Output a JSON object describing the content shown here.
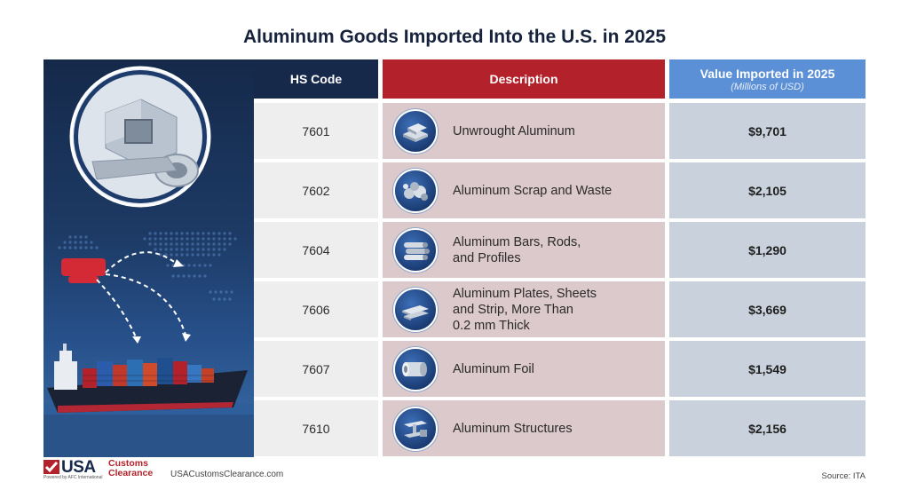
{
  "title": "Aluminum Goods Imported Into the U.S. in 2025",
  "headers": {
    "hs_code": "HS Code",
    "description": "Description",
    "value": "Value Imported in 2025",
    "value_sub": "(Millions of USD)"
  },
  "rows": [
    {
      "code": "7601",
      "description": "Unwrought Aluminum",
      "value": "$9,701",
      "icon": "ingot-stack-icon"
    },
    {
      "code": "7602",
      "description": "Aluminum Scrap and Waste",
      "value": "$2,105",
      "icon": "scrap-pile-icon"
    },
    {
      "code": "7604",
      "description": "Aluminum Bars, Rods,\nand Profiles",
      "value": "$1,290",
      "icon": "rods-icon"
    },
    {
      "code": "7606",
      "description": "Aluminum Plates, Sheets\nand Strip, More Than\n0.2 mm Thick",
      "value": "$3,669",
      "icon": "sheets-icon"
    },
    {
      "code": "7607",
      "description": "Aluminum Foil",
      "value": "$1,549",
      "icon": "foil-roll-icon"
    },
    {
      "code": "7610",
      "description": "Aluminum Structures",
      "value": "$2,156",
      "icon": "structure-beam-icon"
    }
  ],
  "footer": {
    "logo_usa": "USA",
    "logo_customs": "Customs",
    "logo_clearance": "Clearance",
    "logo_powered": "Powered by AFC International",
    "url": "USACustomsClearance.com",
    "source": "Source: ITA"
  },
  "colors": {
    "navy": "#16294a",
    "red": "#b3222b",
    "blue": "#5b8fd6"
  }
}
